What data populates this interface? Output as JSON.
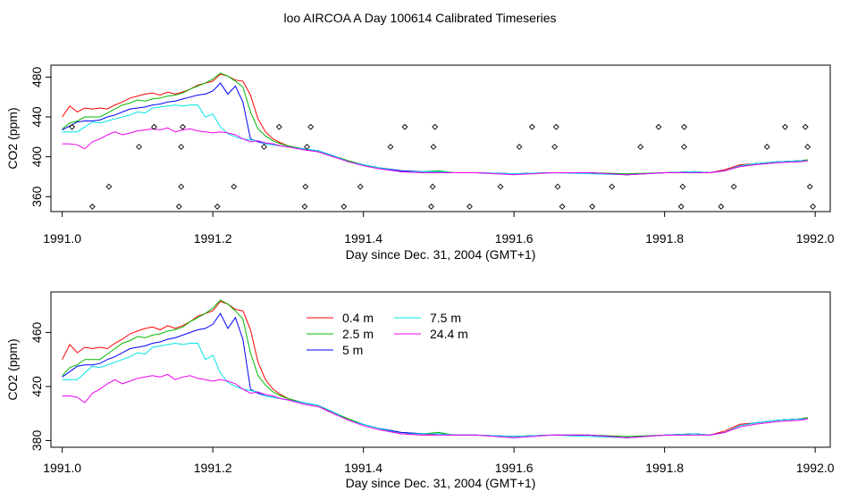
{
  "title": "loo AIRCOA A  Day 100614  Calibrated Timeseries",
  "colors": {
    "0.4 m": "#ff0000",
    "2.5 m": "#00bb00",
    "5 m": "#0000ff",
    "7.5 m": "#00e5e5",
    "24.4 m": "#ee00ee"
  },
  "chart_data": [
    {
      "type": "line",
      "xlabel": "Day since Dec. 31, 2004 (GMT+1)",
      "ylabel": "CO2 (ppm)",
      "xlim": [
        1990.985,
        1992.02
      ],
      "ylim": [
        345,
        492
      ],
      "xticks": [
        "1991.0",
        "1991.2",
        "1991.4",
        "1991.6",
        "1991.8",
        "1992.0"
      ],
      "yticks": [
        "360",
        "400",
        "440",
        "480"
      ],
      "x": [
        1991.0,
        1991.01,
        1991.02,
        1991.03,
        1991.04,
        1991.05,
        1991.06,
        1991.07,
        1991.08,
        1991.09,
        1991.1,
        1991.11,
        1991.12,
        1991.13,
        1991.14,
        1991.15,
        1991.16,
        1991.17,
        1991.18,
        1991.19,
        1991.2,
        1991.21,
        1991.22,
        1991.23,
        1991.24,
        1991.25,
        1991.26,
        1991.27,
        1991.28,
        1991.29,
        1991.3,
        1991.32,
        1991.34,
        1991.36,
        1991.38,
        1991.4,
        1991.42,
        1991.45,
        1991.48,
        1991.5,
        1991.52,
        1991.55,
        1991.6,
        1991.65,
        1991.7,
        1991.75,
        1991.8,
        1991.84,
        1991.86,
        1991.88,
        1991.9,
        1991.92,
        1991.95,
        1991.98,
        1991.99
      ],
      "series": [
        {
          "name": "0.4 m",
          "values": [
            440,
            451,
            445,
            449,
            448,
            449,
            448,
            452,
            455,
            459,
            461,
            463,
            464,
            462,
            465,
            463,
            465,
            468,
            472,
            474,
            476,
            483,
            481,
            477,
            476,
            462,
            438,
            425,
            418,
            414,
            411,
            408,
            406,
            400,
            396,
            392,
            389,
            385,
            384,
            385,
            384,
            384,
            383,
            384,
            384,
            382,
            384,
            385,
            384,
            387,
            392,
            393,
            395,
            396,
            397
          ]
        },
        {
          "name": "2.5 m",
          "values": [
            428,
            434,
            436,
            440,
            440,
            440,
            444,
            448,
            452,
            454,
            457,
            456,
            458,
            459,
            461,
            462,
            464,
            468,
            471,
            474,
            478,
            484,
            481,
            476,
            470,
            445,
            428,
            421,
            416,
            413,
            411,
            408,
            406,
            401,
            396,
            392,
            389,
            386,
            385,
            386,
            384,
            384,
            383,
            384,
            384,
            383,
            384,
            385,
            384,
            386,
            391,
            393,
            395,
            396,
            397
          ]
        },
        {
          "name": "5 m",
          "values": [
            427,
            431,
            435,
            436,
            436,
            437,
            440,
            442,
            445,
            448,
            449,
            450,
            452,
            453,
            455,
            456,
            458,
            460,
            462,
            463,
            466,
            474,
            463,
            471,
            455,
            418,
            415,
            413,
            412,
            411,
            410,
            408,
            406,
            401,
            395,
            392,
            389,
            386,
            385,
            385,
            384,
            384,
            383,
            384,
            384,
            382,
            384,
            385,
            384,
            386,
            391,
            393,
            395,
            396,
            396
          ]
        },
        {
          "name": "7.5 m",
          "values": [
            425,
            425,
            425,
            430,
            435,
            434,
            436,
            438,
            440,
            442,
            445,
            444,
            449,
            450,
            451,
            452,
            451,
            452,
            452,
            440,
            443,
            430,
            423,
            420,
            418,
            417,
            416,
            413,
            412,
            411,
            410,
            408,
            406,
            401,
            395,
            392,
            389,
            385,
            385,
            385,
            384,
            384,
            383,
            384,
            383,
            382,
            384,
            385,
            384,
            386,
            391,
            393,
            395,
            396,
            396
          ]
        },
        {
          "name": "24.4 m",
          "values": [
            413,
            413,
            412,
            408,
            415,
            418,
            422,
            425,
            422,
            424,
            426,
            427,
            428,
            427,
            429,
            425,
            427,
            428,
            426,
            425,
            424,
            425,
            424,
            422,
            418,
            415,
            416,
            414,
            413,
            411,
            410,
            407,
            405,
            400,
            395,
            391,
            388,
            385,
            384,
            384,
            384,
            384,
            382,
            384,
            384,
            382,
            384,
            384,
            384,
            386,
            390,
            392,
            394,
            395,
            396
          ]
        }
      ],
      "points": {
        "type": "scatter",
        "symbol": "open diamond",
        "x": [
          1991.013,
          1991.04,
          1991.062,
          1991.102,
          1991.122,
          1991.155,
          1991.158,
          1991.158,
          1991.16,
          1991.206,
          1991.228,
          1991.268,
          1991.288,
          1991.322,
          1991.323,
          1991.325,
          1991.33,
          1991.374,
          1991.396,
          1991.436,
          1991.455,
          1991.49,
          1991.492,
          1991.493,
          1991.495,
          1991.541,
          1991.582,
          1991.607,
          1991.624,
          1991.654,
          1991.656,
          1991.658,
          1991.664,
          1991.704,
          1991.73,
          1991.768,
          1991.792,
          1991.822,
          1991.824,
          1991.826,
          1991.826,
          1991.875,
          1991.892,
          1991.936,
          1991.96,
          1991.987,
          1991.99,
          1991.993,
          1991.997
        ],
        "y": [
          430,
          350,
          370,
          410,
          430,
          350,
          370,
          410,
          430,
          350,
          370,
          410,
          430,
          350,
          370,
          410,
          430,
          350,
          370,
          410,
          430,
          350,
          370,
          410,
          430,
          350,
          370,
          410,
          430,
          410,
          430,
          370,
          350,
          350,
          370,
          410,
          430,
          350,
          370,
          410,
          430,
          350,
          370,
          410,
          430,
          430,
          410,
          370,
          350
        ]
      }
    },
    {
      "type": "line",
      "xlabel": "Day since Dec. 31, 2004 (GMT+1)",
      "ylabel": "CO2 (ppm)",
      "xlim": [
        1990.985,
        1992.02
      ],
      "ylim": [
        375,
        490
      ],
      "xticks": [
        "1991.0",
        "1991.2",
        "1991.4",
        "1991.6",
        "1991.8",
        "1992.0"
      ],
      "yticks": [
        "380",
        "420",
        "460"
      ],
      "legend": {
        "placement": "top-center",
        "entries": [
          "0.4 m",
          "2.5 m",
          "5 m",
          "7.5 m",
          "24.4 m"
        ]
      },
      "same_series_as": "chart 1"
    }
  ]
}
